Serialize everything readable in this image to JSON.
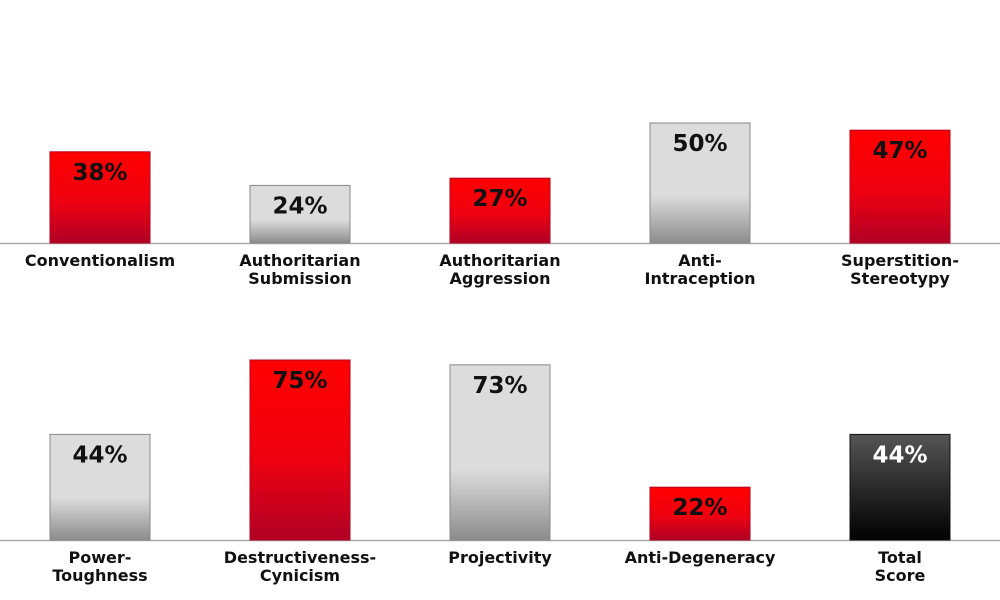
{
  "chart_data": [
    {
      "type": "bar",
      "categories": [
        [
          "Conventionalism"
        ],
        [
          "Authoritarian",
          "Submission"
        ],
        [
          "Authoritarian",
          "Aggression"
        ],
        [
          "Anti-",
          "Intraception"
        ],
        [
          "Superstition-",
          "Stereotypy"
        ]
      ],
      "values": [
        38,
        24,
        27,
        50,
        47
      ],
      "value_labels": [
        "38%",
        "24%",
        "27%",
        "50%",
        "47%"
      ],
      "bar_styles": [
        "red",
        "gray",
        "red",
        "gray",
        "red"
      ],
      "ylim": [
        0,
        100
      ],
      "grid": false,
      "legend": "none"
    },
    {
      "type": "bar",
      "categories": [
        [
          "Power-",
          "Toughness"
        ],
        [
          "Destructiveness-",
          "Cynicism"
        ],
        [
          "Projectivity"
        ],
        [
          "Anti-Degeneracy"
        ],
        [
          "Total",
          "Score"
        ]
      ],
      "values": [
        44,
        75,
        73,
        22,
        44
      ],
      "value_labels": [
        "44%",
        "75%",
        "73%",
        "22%",
        "44%"
      ],
      "bar_styles": [
        "gray",
        "red",
        "gray",
        "red",
        "black"
      ],
      "ylim": [
        0,
        100
      ],
      "grid": false,
      "legend": "none"
    }
  ],
  "colors": {
    "red_top": "#ff0000",
    "red_mid": "#ee0010",
    "red_bottom": "#b00025",
    "gray_top": "#dcdcdc",
    "gray_bottom": "#8c8c8c",
    "black_top": "#555555",
    "black_bottom": "#000000",
    "axis": "#aaaaaa",
    "label_dark": "#111111",
    "label_light": "#ffffff"
  }
}
